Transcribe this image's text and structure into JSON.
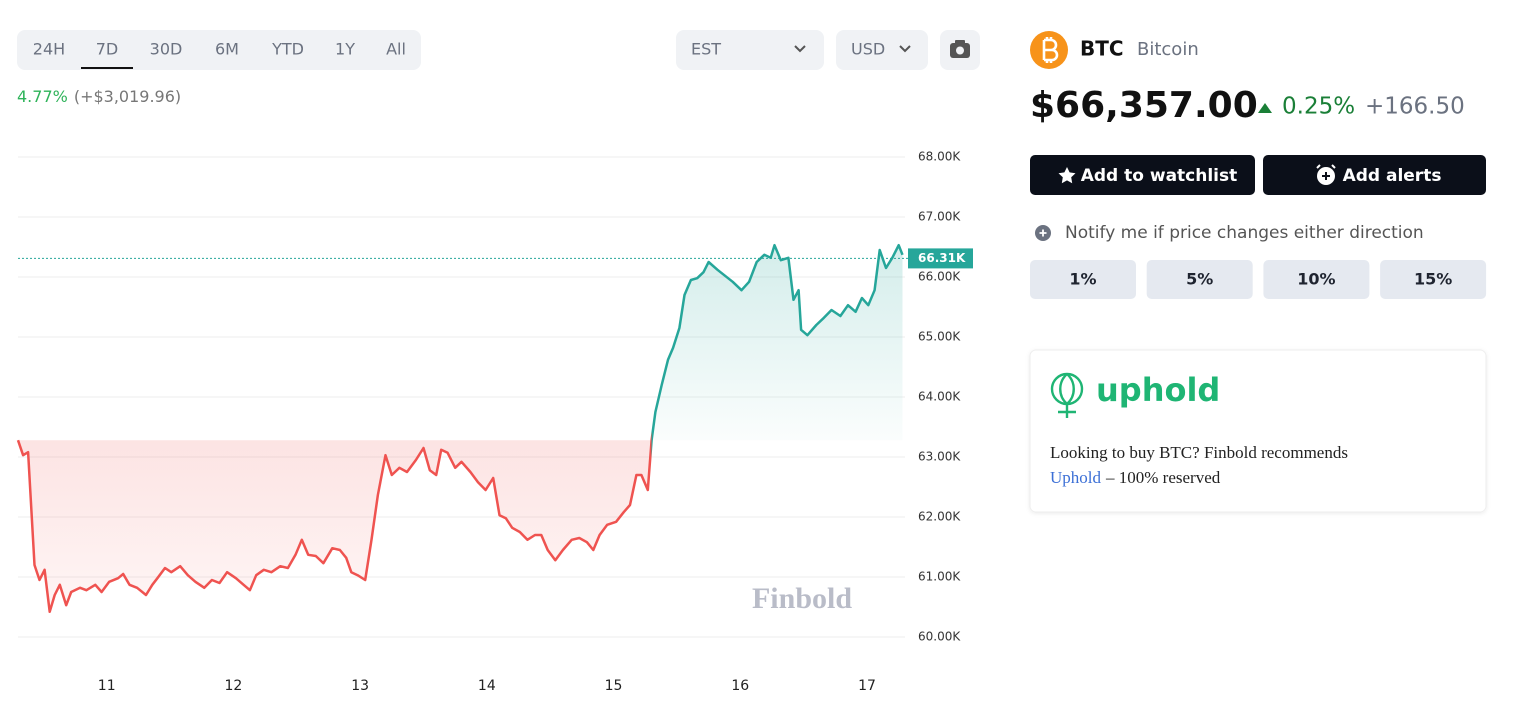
{
  "toolbar": {
    "ranges": [
      "24H",
      "7D",
      "30D",
      "6M",
      "YTD",
      "1Y",
      "All"
    ],
    "active": 1,
    "change_pct": "4.77%",
    "change_abs": "(+$3,019.96)",
    "timezone": "EST",
    "currency": "USD"
  },
  "chart_data": {
    "type": "line",
    "up_color": "#26a69a",
    "down_color": "#ef5350",
    "x": [
      10.3,
      10.34,
      10.38,
      10.43,
      10.47,
      10.51,
      10.55,
      10.59,
      10.63,
      10.68,
      10.72,
      10.79,
      10.84,
      10.91,
      10.96,
      11.02,
      11.09,
      11.13,
      11.18,
      11.24,
      11.31,
      11.36,
      11.4,
      11.46,
      11.51,
      11.58,
      11.64,
      11.7,
      11.77,
      11.83,
      11.89,
      11.95,
      12.02,
      12.08,
      12.13,
      12.18,
      12.24,
      12.3,
      12.37,
      12.43,
      12.49,
      12.54,
      12.59,
      12.65,
      12.71,
      12.78,
      12.84,
      12.89,
      12.93,
      12.98,
      13.04,
      13.09,
      13.14,
      13.2,
      13.25,
      13.31,
      13.37,
      13.44,
      13.5,
      13.55,
      13.6,
      13.64,
      13.69,
      13.75,
      13.8,
      13.87,
      13.93,
      13.99,
      14.05,
      14.1,
      14.15,
      14.2,
      14.26,
      14.32,
      14.38,
      14.43,
      14.48,
      14.54,
      14.6,
      14.67,
      14.73,
      14.79,
      14.84,
      14.89,
      14.95,
      15.02,
      15.08,
      15.13,
      15.18,
      15.22,
      15.27,
      15.3,
      15.33,
      15.38,
      15.43,
      15.47,
      15.52,
      15.56,
      15.61,
      15.66,
      15.71,
      15.75,
      15.82,
      15.88,
      15.94,
      16.01,
      16.07,
      16.13,
      16.19,
      16.24,
      16.27,
      16.32,
      16.38,
      16.42,
      16.46,
      16.48,
      16.53,
      16.6,
      16.66,
      16.72,
      16.79,
      16.85,
      16.91,
      16.96,
      17.01,
      17.06,
      17.1,
      17.15,
      17.2,
      17.25,
      17.28
    ],
    "values": [
      63280,
      63030,
      63080,
      61200,
      60950,
      61120,
      60420,
      60700,
      60870,
      60530,
      60750,
      60820,
      60780,
      60870,
      60750,
      60920,
      60980,
      61050,
      60870,
      60820,
      60700,
      60870,
      60980,
      61150,
      61080,
      61180,
      61030,
      60920,
      60820,
      60950,
      60900,
      61080,
      60980,
      60870,
      60780,
      61030,
      61120,
      61080,
      61180,
      61150,
      61370,
      61620,
      61370,
      61350,
      61230,
      61480,
      61450,
      61320,
      61080,
      61030,
      60950,
      61620,
      62370,
      63030,
      62700,
      62820,
      62750,
      62950,
      63150,
      62780,
      62700,
      63120,
      63070,
      62820,
      62920,
      62750,
      62580,
      62450,
      62650,
      62030,
      61980,
      61820,
      61750,
      61620,
      61700,
      61700,
      61450,
      61280,
      61450,
      61620,
      61650,
      61580,
      61450,
      61700,
      61870,
      61920,
      62080,
      62200,
      62700,
      62700,
      62450,
      63280,
      63750,
      64200,
      64620,
      64820,
      65150,
      65700,
      65950,
      65980,
      66080,
      66250,
      66120,
      66020,
      65920,
      65780,
      65920,
      66250,
      66370,
      66320,
      66530,
      66280,
      66320,
      65620,
      65780,
      65120,
      65030,
      65200,
      65320,
      65450,
      65350,
      65530,
      65420,
      65650,
      65530,
      65780,
      66450,
      66150,
      66320,
      66530,
      66370
    ],
    "xlim": [
      10.3,
      17.3
    ],
    "xticks": [
      11,
      12,
      13,
      14,
      15,
      16,
      17
    ],
    "ylim": [
      59500,
      68300
    ],
    "yticks": [
      {
        "value": 60000,
        "label": "60.00K"
      },
      {
        "value": 61000,
        "label": "61.00K"
      },
      {
        "value": 62000,
        "label": "62.00K"
      },
      {
        "value": 63000,
        "label": "63.00K"
      },
      {
        "value": 64000,
        "label": "64.00K"
      },
      {
        "value": 65000,
        "label": "65.00K"
      },
      {
        "value": 66000,
        "label": "66.00K"
      },
      {
        "value": 67000,
        "label": "67.00K"
      },
      {
        "value": 68000,
        "label": "68.00K"
      }
    ],
    "grid": true,
    "current": {
      "value": 66310,
      "label": "66.31K"
    },
    "watermark": "Finbold"
  },
  "asset": {
    "symbol": "BTC",
    "name": "Bitcoin",
    "price": "$66,357.00",
    "change_pct": "0.25%",
    "change_abs": "+166.50"
  },
  "actions": {
    "watchlist": "Add to watchlist",
    "alerts": "Add alerts",
    "notify": "Notify me if price changes either direction",
    "thresholds": [
      "1%",
      "5%",
      "10%",
      "15%"
    ]
  },
  "promo": {
    "brand": "uphold",
    "text": "Looking to buy BTC? Finbold recommends",
    "link": "Uphold",
    "suffix": "– 100% reserved"
  }
}
